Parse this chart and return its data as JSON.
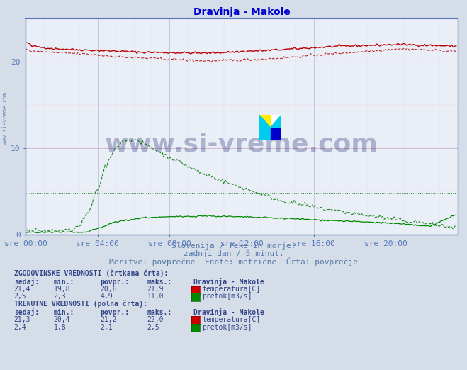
{
  "title": "Dravinja - Makole",
  "title_color": "#0000cc",
  "bg_color": "#d4dde8",
  "plot_bg_color": "#eaeff7",
  "grid_v_color": "#b8c4d8",
  "grid_h_color": "#c8c0d8",
  "grid_dot_red": "#ffaaaa",
  "grid_dot_blue": "#b8c4d8",
  "xlabel_color": "#5577aa",
  "xtick_labels": [
    "sre 00:00",
    "sre 04:00",
    "sre 08:00",
    "sre 12:00",
    "sre 16:00",
    "sre 20:00"
  ],
  "ylim": [
    0,
    25
  ],
  "xlim": [
    0,
    288
  ],
  "subtitle1": "Slovenija / reke in morje.",
  "subtitle2": "zadnji dan / 5 minut.",
  "subtitle3": "Meritve: povprečne  Enote: metrične  Črta: povprečje",
  "watermark": "www.si-vreme.com",
  "temp_solid_color": "#bb0000",
  "temp_dashed_color": "#bb2222",
  "flow_solid_color": "#008800",
  "flow_dashed_color": "#228822",
  "axis_color": "#5577bb",
  "text_color": "#334488",
  "n_points": 288
}
